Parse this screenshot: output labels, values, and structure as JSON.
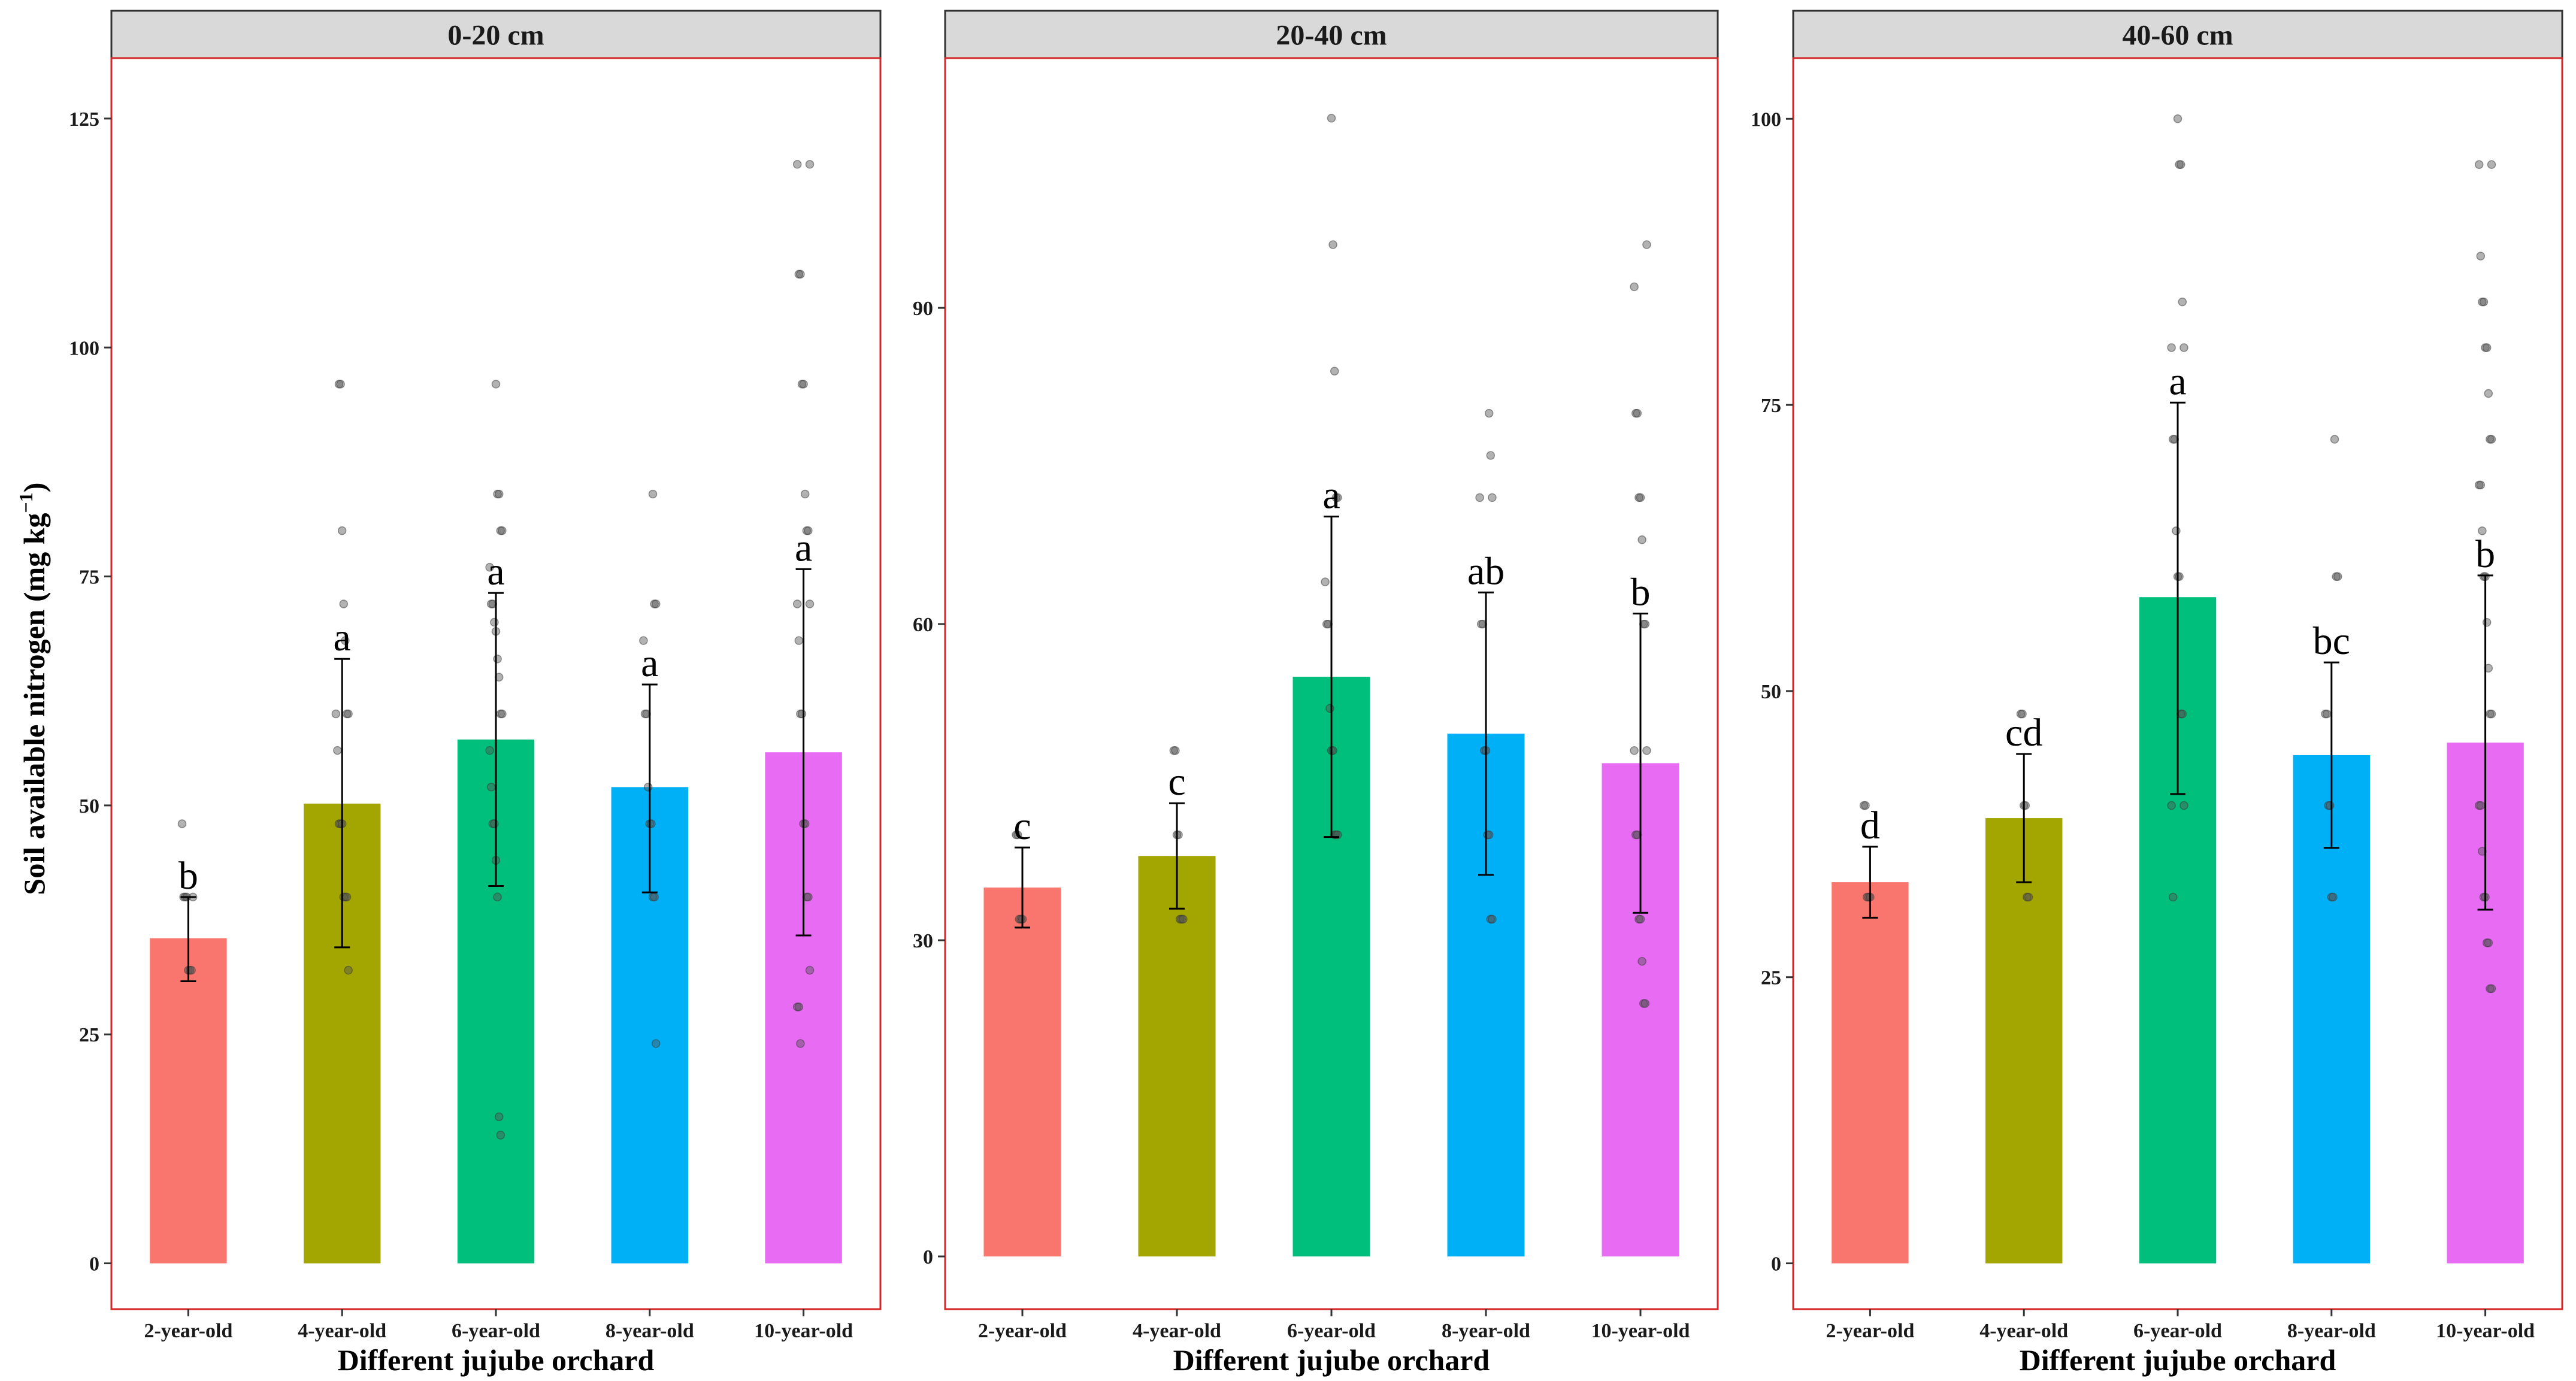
{
  "chart_data": {
    "type": "bar",
    "ylabel": "Soil available nitrogen (mg kg",
    "ylabel_sup": "−1",
    "ylabel_tail": ")",
    "xlabel": "Different jujube orchard",
    "categories": [
      "2-year-old",
      "4-year-old",
      "6-year-old",
      "8-year-old",
      "10-year-old"
    ],
    "colors": [
      "#F8766D",
      "#A3A500",
      "#00BF7D",
      "#00B0F6",
      "#E76BF3"
    ],
    "panels": [
      {
        "title": "0-20 cm",
        "ylim": [
          -5,
          131.6
        ],
        "yticks": [
          0,
          25,
          50,
          75,
          100,
          125
        ],
        "means": [
          35.5,
          50.2,
          57.2,
          52.0,
          55.8
        ],
        "err_low": [
          30.8,
          34.5,
          41.2,
          40.5,
          35.8
        ],
        "err_high": [
          40.0,
          66.0,
          73.2,
          63.2,
          75.8
        ],
        "letters": [
          "b",
          "a",
          "a",
          "a",
          "a"
        ],
        "points": [
          [
            48,
            40,
            40,
            40,
            32,
            32,
            32,
            40
          ],
          [
            96,
            96,
            80,
            72,
            68,
            60,
            60,
            60,
            56,
            48,
            48,
            48,
            40,
            40,
            40,
            32
          ],
          [
            96,
            84,
            84,
            80,
            80,
            76,
            72,
            72,
            70,
            69,
            66,
            64,
            60,
            60,
            56,
            52,
            48,
            48,
            44,
            40,
            16,
            14
          ],
          [
            84,
            72,
            72,
            68,
            60,
            60,
            52,
            48,
            48,
            40,
            40,
            24
          ],
          [
            120,
            120,
            108,
            108,
            96,
            96,
            84,
            80,
            80,
            72,
            72,
            68,
            60,
            60,
            48,
            48,
            40,
            40,
            32,
            28,
            28,
            24
          ]
        ]
      },
      {
        "title": "20-40 cm",
        "ylim": [
          -5,
          113.7
        ],
        "yticks": [
          0,
          30,
          60,
          90
        ],
        "means": [
          35.0,
          38.0,
          55.0,
          49.6,
          46.8
        ],
        "err_low": [
          31.2,
          33.0,
          39.8,
          36.2,
          32.6
        ],
        "err_high": [
          38.8,
          43.0,
          70.2,
          63.0,
          61.0
        ],
        "letters": [
          "c",
          "c",
          "a",
          "ab",
          "b"
        ],
        "points": [
          [
            40,
            40,
            32,
            32,
            32
          ],
          [
            48,
            48,
            40,
            40,
            32,
            32,
            32
          ],
          [
            108,
            96,
            84,
            72,
            72,
            64,
            60,
            60,
            52,
            48,
            48,
            40,
            40,
            40
          ],
          [
            80,
            76,
            72,
            72,
            60,
            60,
            48,
            48,
            40,
            40,
            32,
            32
          ],
          [
            96,
            92,
            80,
            80,
            72,
            72,
            68,
            60,
            60,
            48,
            48,
            40,
            40,
            32,
            32,
            28,
            24,
            24
          ]
        ]
      },
      {
        "title": "40-60 cm",
        "ylim": [
          -4,
          105.3
        ],
        "yticks": [
          0,
          25,
          50,
          75,
          100
        ],
        "means": [
          33.3,
          38.9,
          58.2,
          44.4,
          45.5
        ],
        "err_low": [
          30.2,
          33.3,
          41.0,
          36.3,
          30.9
        ],
        "err_high": [
          36.4,
          44.5,
          75.2,
          52.5,
          60.1
        ],
        "letters": [
          "d",
          "cd",
          "a",
          "bc",
          "b"
        ],
        "points": [
          [
            40,
            40,
            32,
            32,
            32
          ],
          [
            48,
            48,
            40,
            40,
            32,
            32
          ],
          [
            100,
            96,
            96,
            84,
            80,
            80,
            72,
            72,
            64,
            60,
            60,
            48,
            48,
            40,
            40,
            32
          ],
          [
            72,
            60,
            60,
            48,
            48,
            40,
            40,
            32,
            32
          ],
          [
            96,
            96,
            88,
            84,
            84,
            80,
            80,
            76,
            72,
            72,
            68,
            68,
            64,
            60,
            60,
            56,
            52,
            48,
            48,
            40,
            40,
            36,
            32,
            32,
            28,
            28,
            24,
            24
          ]
        ]
      }
    ]
  }
}
